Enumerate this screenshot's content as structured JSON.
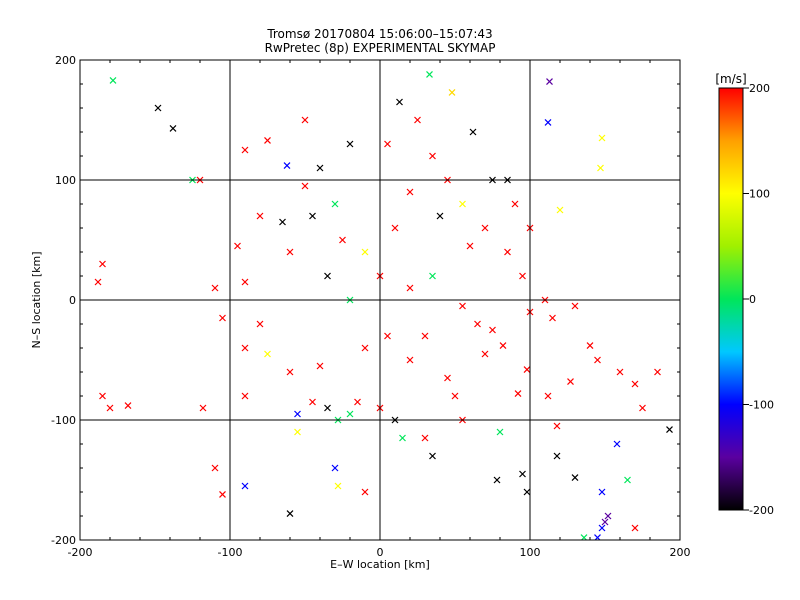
{
  "chart_data": {
    "type": "scatter",
    "title": "Tromsø 20170804 15:06:00–15:07:43",
    "subtitle": "RwPretec (8p) EXPERIMENTAL SKYMAP",
    "xlabel": "E–W location [km]",
    "ylabel": "N–S location [km]",
    "xlim": [
      -200,
      200
    ],
    "ylim": [
      -200,
      200
    ],
    "xticks": [
      -200,
      -100,
      0,
      100,
      200
    ],
    "yticks": [
      -200,
      -100,
      0,
      100,
      200
    ],
    "grid": true,
    "marker_types": [
      "dot",
      "x"
    ],
    "colorbar": {
      "label": "[m/s]",
      "range": [
        -200,
        200
      ],
      "ticks": [
        200,
        100,
        0,
        -100,
        -200
      ],
      "colormap": [
        "#000000",
        "#5a00a0",
        "#0000ff",
        "#00c8ff",
        "#00e65a",
        "#a0f000",
        "#ffff00",
        "#ffa000",
        "#ff0000"
      ]
    },
    "points": [
      {
        "x": -148,
        "y": 160,
        "v": -200,
        "m": "x"
      },
      {
        "x": -138,
        "y": 143,
        "v": -200,
        "m": "x"
      },
      {
        "x": -178,
        "y": 183,
        "v": 0,
        "m": "x"
      },
      {
        "x": 33,
        "y": 188,
        "v": 0,
        "m": "x"
      },
      {
        "x": 48,
        "y": 173,
        "v": 120,
        "m": "x"
      },
      {
        "x": 13,
        "y": 165,
        "v": -200,
        "m": "x"
      },
      {
        "x": 112,
        "y": 148,
        "v": -100,
        "m": "x"
      },
      {
        "x": 113,
        "y": 182,
        "v": -150,
        "m": "x"
      },
      {
        "x": 147,
        "y": 110,
        "v": 100,
        "m": "x"
      },
      {
        "x": 148,
        "y": 135,
        "v": 100,
        "m": "x"
      },
      {
        "x": 62,
        "y": 140,
        "v": -200,
        "m": "x"
      },
      {
        "x": 120,
        "y": 75,
        "v": 100,
        "m": "x"
      },
      {
        "x": -75,
        "y": 133,
        "v": 200,
        "m": "x"
      },
      {
        "x": -62,
        "y": 112,
        "v": -100,
        "m": "x"
      },
      {
        "x": -90,
        "y": 125,
        "v": 200,
        "m": "x"
      },
      {
        "x": -120,
        "y": 100,
        "v": 200,
        "m": "x"
      },
      {
        "x": -185,
        "y": 30,
        "v": 200,
        "m": "x"
      },
      {
        "x": -188,
        "y": 15,
        "v": 200,
        "m": "x"
      },
      {
        "x": -168,
        "y": -88,
        "v": 200,
        "m": "x"
      },
      {
        "x": -185,
        "y": -80,
        "v": 200,
        "m": "x"
      },
      {
        "x": -180,
        "y": -90,
        "v": 200,
        "m": "x"
      },
      {
        "x": -118,
        "y": -90,
        "v": 200,
        "m": "x"
      },
      {
        "x": -110,
        "y": -140,
        "v": 200,
        "m": "x"
      },
      {
        "x": -105,
        "y": -162,
        "v": 200,
        "m": "x"
      },
      {
        "x": -90,
        "y": -80,
        "v": 200,
        "m": "x"
      },
      {
        "x": -90,
        "y": -155,
        "v": -100,
        "m": "x"
      },
      {
        "x": -60,
        "y": -178,
        "v": -200,
        "m": "x"
      },
      {
        "x": -55,
        "y": -110,
        "v": 100,
        "m": "x"
      },
      {
        "x": -28,
        "y": -155,
        "v": 100,
        "m": "x"
      },
      {
        "x": -30,
        "y": -140,
        "v": -100,
        "m": "x"
      },
      {
        "x": -28,
        "y": -100,
        "v": 0,
        "m": "x"
      },
      {
        "x": -10,
        "y": -160,
        "v": 200,
        "m": "x"
      },
      {
        "x": 15,
        "y": -115,
        "v": 0,
        "m": "x"
      },
      {
        "x": 30,
        "y": -115,
        "v": 200,
        "m": "x"
      },
      {
        "x": 35,
        "y": -130,
        "v": -200,
        "m": "x"
      },
      {
        "x": 55,
        "y": -100,
        "v": 200,
        "m": "x"
      },
      {
        "x": 80,
        "y": -110,
        "v": 0,
        "m": "x"
      },
      {
        "x": 78,
        "y": -150,
        "v": -200,
        "m": "x"
      },
      {
        "x": 95,
        "y": -145,
        "v": -200,
        "m": "x"
      },
      {
        "x": 98,
        "y": -160,
        "v": -200,
        "m": "x"
      },
      {
        "x": 118,
        "y": -105,
        "v": 200,
        "m": "x"
      },
      {
        "x": 118,
        "y": -130,
        "v": -200,
        "m": "x"
      },
      {
        "x": 130,
        "y": -148,
        "v": -200,
        "m": "x"
      },
      {
        "x": 136,
        "y": -198,
        "v": 0,
        "m": "x"
      },
      {
        "x": 145,
        "y": -198,
        "v": -100,
        "m": "x"
      },
      {
        "x": 148,
        "y": -190,
        "v": -100,
        "m": "x"
      },
      {
        "x": 150,
        "y": -185,
        "v": -150,
        "m": "x"
      },
      {
        "x": 152,
        "y": -180,
        "v": -150,
        "m": "x"
      },
      {
        "x": 148,
        "y": -160,
        "v": -100,
        "m": "x"
      },
      {
        "x": 158,
        "y": -120,
        "v": -100,
        "m": "x"
      },
      {
        "x": 165,
        "y": -150,
        "v": 0,
        "m": "x"
      },
      {
        "x": 170,
        "y": -190,
        "v": 200,
        "m": "x"
      },
      {
        "x": 175,
        "y": -90,
        "v": 200,
        "m": "x"
      },
      {
        "x": 193,
        "y": -108,
        "v": -200,
        "m": "x"
      },
      {
        "x": 160,
        "y": -60,
        "v": 200,
        "m": "x"
      },
      {
        "x": 145,
        "y": -50,
        "v": 200,
        "m": "x"
      },
      {
        "x": 140,
        "y": -38,
        "v": 200,
        "m": "x"
      },
      {
        "x": 127,
        "y": -68,
        "v": 200,
        "m": "x"
      },
      {
        "x": 112,
        "y": -80,
        "v": 200,
        "m": "x"
      },
      {
        "x": 92,
        "y": -78,
        "v": 200,
        "m": "x"
      },
      {
        "x": 98,
        "y": -58,
        "v": 200,
        "m": "x"
      },
      {
        "x": 82,
        "y": -38,
        "v": 200,
        "m": "x"
      },
      {
        "x": 70,
        "y": -45,
        "v": 200,
        "m": "x"
      },
      {
        "x": 75,
        "y": -25,
        "v": 200,
        "m": "x"
      },
      {
        "x": 65,
        "y": -20,
        "v": 200,
        "m": "x"
      },
      {
        "x": 55,
        "y": -5,
        "v": 200,
        "m": "x"
      },
      {
        "x": 100,
        "y": -10,
        "v": 200,
        "m": "x"
      },
      {
        "x": 110,
        "y": 0,
        "v": 200,
        "m": "x"
      },
      {
        "x": 115,
        "y": -15,
        "v": 200,
        "m": "x"
      },
      {
        "x": 130,
        "y": -5,
        "v": 200,
        "m": "x"
      },
      {
        "x": 95,
        "y": 20,
        "v": 200,
        "m": "x"
      },
      {
        "x": 85,
        "y": 40,
        "v": 200,
        "m": "x"
      },
      {
        "x": 100,
        "y": 60,
        "v": 200,
        "m": "x"
      },
      {
        "x": 90,
        "y": 80,
        "v": 200,
        "m": "x"
      },
      {
        "x": 75,
        "y": 100,
        "v": -200,
        "m": "x"
      },
      {
        "x": 85,
        "y": 100,
        "v": -200,
        "m": "x"
      },
      {
        "x": 70,
        "y": 60,
        "v": 200,
        "m": "x"
      },
      {
        "x": 60,
        "y": 45,
        "v": 200,
        "m": "x"
      },
      {
        "x": 45,
        "y": 100,
        "v": 200,
        "m": "x"
      },
      {
        "x": 35,
        "y": 120,
        "v": 200,
        "m": "x"
      },
      {
        "x": 20,
        "y": 90,
        "v": 200,
        "m": "x"
      },
      {
        "x": 5,
        "y": 130,
        "v": 200,
        "m": "x"
      },
      {
        "x": -20,
        "y": 130,
        "v": -200,
        "m": "x"
      },
      {
        "x": -40,
        "y": 110,
        "v": -200,
        "m": "x"
      },
      {
        "x": -50,
        "y": 95,
        "v": 200,
        "m": "x"
      },
      {
        "x": -30,
        "y": 80,
        "v": 0,
        "m": "x"
      },
      {
        "x": -45,
        "y": 70,
        "v": -200,
        "m": "x"
      },
      {
        "x": -65,
        "y": 65,
        "v": -200,
        "m": "x"
      },
      {
        "x": -80,
        "y": 70,
        "v": 200,
        "m": "x"
      },
      {
        "x": -95,
        "y": 45,
        "v": 200,
        "m": "x"
      },
      {
        "x": -90,
        "y": 15,
        "v": 200,
        "m": "x"
      },
      {
        "x": -110,
        "y": 10,
        "v": 200,
        "m": "x"
      },
      {
        "x": -105,
        "y": -15,
        "v": 200,
        "m": "x"
      },
      {
        "x": -80,
        "y": -20,
        "v": 200,
        "m": "x"
      },
      {
        "x": -90,
        "y": -40,
        "v": 200,
        "m": "x"
      },
      {
        "x": -75,
        "y": -45,
        "v": 100,
        "m": "x"
      },
      {
        "x": -60,
        "y": -60,
        "v": 200,
        "m": "x"
      },
      {
        "x": -40,
        "y": -55,
        "v": 200,
        "m": "x"
      },
      {
        "x": -45,
        "y": -85,
        "v": 200,
        "m": "x"
      },
      {
        "x": -55,
        "y": -95,
        "v": -100,
        "m": "x"
      },
      {
        "x": -35,
        "y": -90,
        "v": -200,
        "m": "x"
      },
      {
        "x": -20,
        "y": -95,
        "v": 0,
        "m": "x"
      },
      {
        "x": -15,
        "y": -85,
        "v": 200,
        "m": "x"
      },
      {
        "x": 0,
        "y": -90,
        "v": 200,
        "m": "x"
      },
      {
        "x": 10,
        "y": -100,
        "v": -200,
        "m": "x"
      },
      {
        "x": -10,
        "y": -40,
        "v": 200,
        "m": "x"
      },
      {
        "x": 5,
        "y": -30,
        "v": 200,
        "m": "x"
      },
      {
        "x": 20,
        "y": -50,
        "v": 200,
        "m": "x"
      },
      {
        "x": 30,
        "y": -30,
        "v": 200,
        "m": "x"
      },
      {
        "x": 45,
        "y": -65,
        "v": 200,
        "m": "x"
      },
      {
        "x": 50,
        "y": -80,
        "v": 200,
        "m": "x"
      },
      {
        "x": 20,
        "y": 10,
        "v": 200,
        "m": "x"
      },
      {
        "x": 35,
        "y": 20,
        "v": 0,
        "m": "x"
      },
      {
        "x": 0,
        "y": 20,
        "v": 200,
        "m": "x"
      },
      {
        "x": -10,
        "y": 40,
        "v": 100,
        "m": "x"
      },
      {
        "x": -25,
        "y": 50,
        "v": 200,
        "m": "x"
      },
      {
        "x": 10,
        "y": 60,
        "v": 200,
        "m": "x"
      },
      {
        "x": 40,
        "y": 70,
        "v": -200,
        "m": "x"
      },
      {
        "x": 55,
        "y": 80,
        "v": 100,
        "m": "x"
      },
      {
        "x": 25,
        "y": 150,
        "v": 200,
        "m": "x"
      },
      {
        "x": -50,
        "y": 150,
        "v": 200,
        "m": "x"
      },
      {
        "x": -60,
        "y": 40,
        "v": 200,
        "m": "x"
      },
      {
        "x": -35,
        "y": 20,
        "v": -200,
        "m": "x"
      },
      {
        "x": -20,
        "y": 0,
        "v": 0,
        "m": "x"
      },
      {
        "x": 170,
        "y": -70,
        "v": 200,
        "m": "x"
      },
      {
        "x": 185,
        "y": -60,
        "v": 200,
        "m": "x"
      },
      {
        "x": -125,
        "y": 100,
        "v": 0,
        "m": "x"
      }
    ]
  }
}
